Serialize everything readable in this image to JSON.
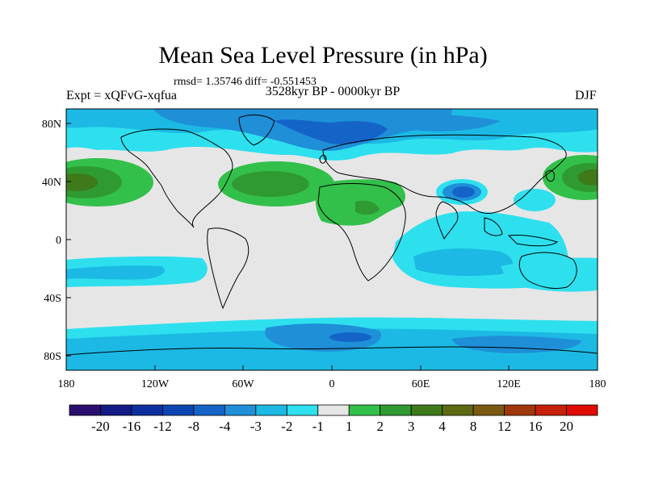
{
  "title": "Mean Sea Level Pressure (in hPa)",
  "stats": "rmsd= 1.35746 diff= -0.551453",
  "experiment": "Expt = xQFvG-xqfua",
  "period": "3528kyr BP - 0000kyr BP",
  "season": "DJF",
  "lat_ticks": [
    "80N",
    "40N",
    "0",
    "40S",
    "80S"
  ],
  "lon_ticks": [
    "180",
    "120W",
    "60W",
    "0",
    "60E",
    "120E",
    "180"
  ],
  "colorbar": {
    "labels": [
      "-20",
      "-16",
      "-12",
      "-8",
      "-4",
      "-3",
      "-2",
      "-1",
      "1",
      "2",
      "3",
      "4",
      "8",
      "12",
      "16",
      "20"
    ],
    "colors": [
      "#2a0f6e",
      "#141a85",
      "#0d2f9e",
      "#0c45b2",
      "#1464c8",
      "#1f8fd8",
      "#1cb9e4",
      "#2ee0ee",
      "#e6e6e6",
      "#33c04a",
      "#2f9a32",
      "#3f7a1a",
      "#5e6a12",
      "#7a5a10",
      "#a0360c",
      "#c61f0a",
      "#e00c04"
    ]
  },
  "map_colors": {
    "ocean_land": "#e6e6e6",
    "cyan": "#2ee0ee",
    "light_blue": "#1cb9e4",
    "mid_blue": "#1f8fd8",
    "blue": "#1464c8",
    "dark_blue": "#0c45b2",
    "green": "#33c04a",
    "mid_green": "#2f9a32",
    "olive": "#3f7a1a",
    "coast": "#000000"
  }
}
